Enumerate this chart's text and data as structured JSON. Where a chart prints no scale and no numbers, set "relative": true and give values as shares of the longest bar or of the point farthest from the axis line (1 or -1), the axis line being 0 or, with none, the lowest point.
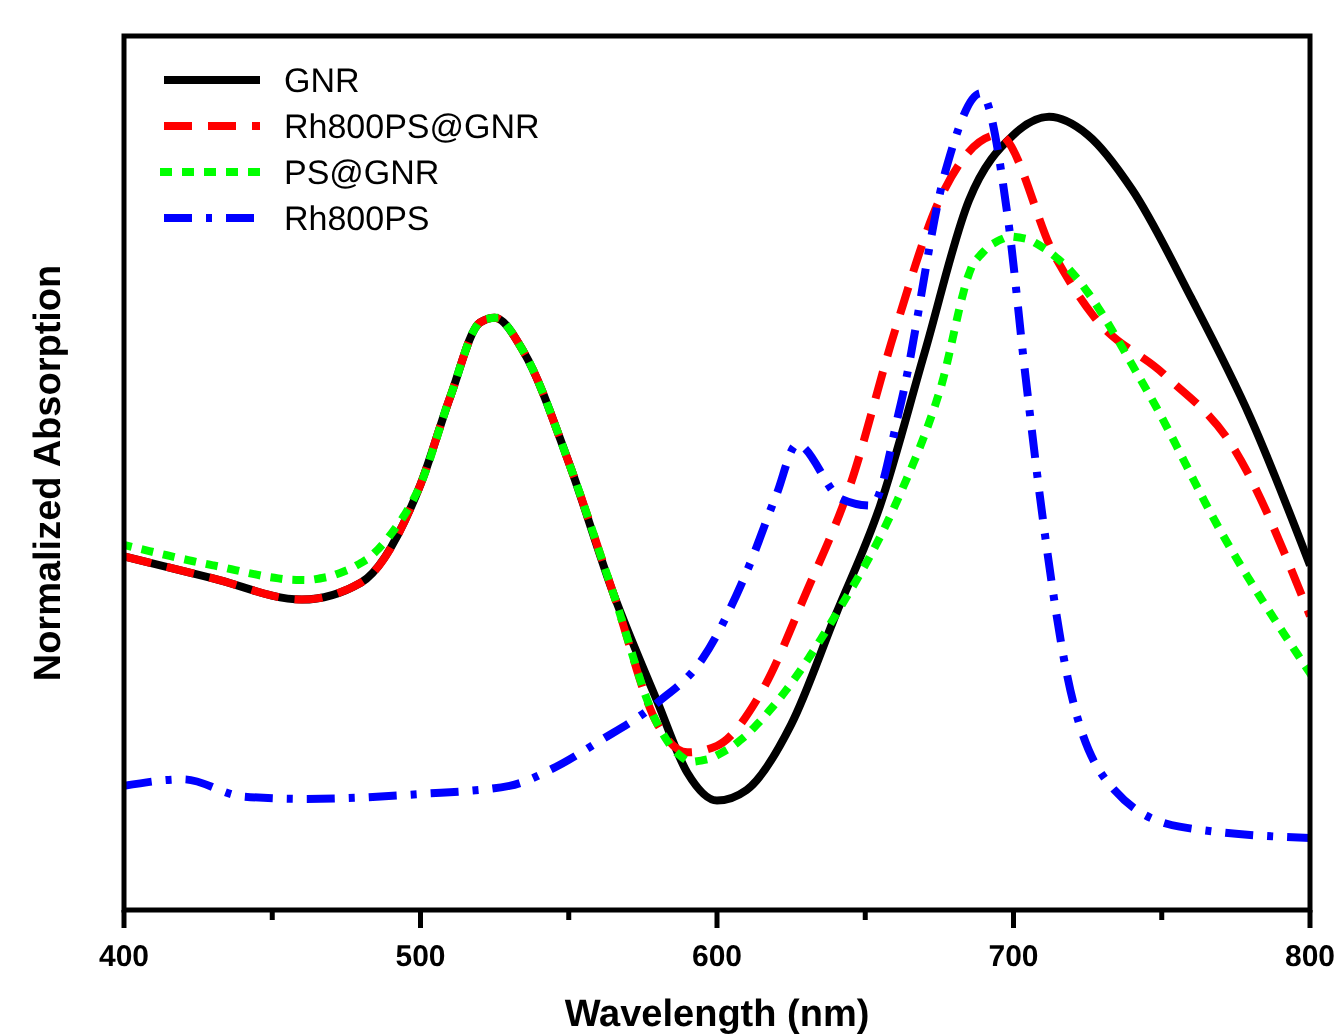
{
  "chart_data": {
    "type": "line",
    "xlabel": "Wavelength (nm)",
    "ylabel": "Normalized Absorption",
    "relative": true,
    "xlim": [
      400,
      800
    ],
    "xticks": [
      400,
      {
        "value": 450,
        "label": null
      },
      500,
      {
        "value": 550,
        "label": null
      },
      600,
      {
        "value": 650,
        "label": null
      },
      700,
      {
        "value": 750,
        "label": null
      },
      800
    ],
    "legend": "top left",
    "grid": false,
    "marker": "none",
    "series": [
      {
        "name": "GNR",
        "color": "#000000",
        "line_style": "solid",
        "x": [
          400,
          430,
          460,
          480,
          500,
          510,
          520,
          525,
          535,
          550,
          565,
          580,
          590,
          600,
          610,
          625,
          640,
          655,
          670,
          685,
          700,
          712,
          725,
          740,
          760,
          780,
          800
        ],
        "values": [
          0.433,
          0.406,
          0.38,
          0.401,
          0.521,
          0.628,
          0.719,
          0.725,
          0.682,
          0.548,
          0.388,
          0.254,
          0.168,
          0.134,
          0.147,
          0.227,
          0.361,
          0.495,
          0.682,
          0.869,
          0.949,
          0.971,
          0.949,
          0.882,
          0.749,
          0.602,
          0.422
        ]
      },
      {
        "name": "Rh800PS@GNR",
        "color": "#ff0000",
        "line_style": "dashed",
        "x": [
          400,
          430,
          460,
          480,
          500,
          510,
          520,
          525,
          535,
          550,
          565,
          580,
          590,
          600,
          615,
          630,
          645,
          660,
          675,
          695,
          714,
          727,
          751,
          774,
          800
        ],
        "values": [
          0.433,
          0.406,
          0.38,
          0.401,
          0.521,
          0.628,
          0.719,
          0.725,
          0.682,
          0.548,
          0.388,
          0.227,
          0.193,
          0.201,
          0.267,
          0.388,
          0.521,
          0.709,
          0.869,
          0.949,
          0.8,
          0.727,
          0.655,
          0.567,
          0.36
        ]
      },
      {
        "name": "PS@GNR",
        "color": "#00ff00",
        "line_style": "dotted",
        "x": [
          400,
          430,
          460,
          480,
          490,
          500,
          510,
          520,
          525,
          535,
          550,
          565,
          580,
          592,
          605,
          620,
          640,
          660,
          675,
          687,
          700,
          716,
          745,
          770,
          800
        ],
        "values": [
          0.447,
          0.422,
          0.404,
          0.425,
          0.46,
          0.521,
          0.628,
          0.719,
          0.725,
          0.682,
          0.548,
          0.388,
          0.227,
          0.182,
          0.2,
          0.254,
          0.361,
          0.495,
          0.634,
          0.794,
          0.824,
          0.794,
          0.636,
          0.463,
          0.29
        ]
      },
      {
        "name": "Rh800PS",
        "color": "#0000ff",
        "line_style": "dashdot",
        "x": [
          400,
          420,
          440,
          460,
          500,
          530,
          545,
          560,
          580,
          595,
          610,
          620,
          627,
          642,
          652,
          662,
          677,
          689,
          698,
          704,
          710,
          718,
          734,
          756,
          800
        ],
        "values": [
          0.152,
          0.16,
          0.139,
          0.136,
          0.142,
          0.152,
          0.174,
          0.206,
          0.254,
          0.307,
          0.414,
          0.508,
          0.57,
          0.503,
          0.495,
          0.62,
          0.904,
          1,
          0.85,
          0.655,
          0.476,
          0.289,
          0.147,
          0.102,
          0.088
        ]
      }
    ]
  }
}
